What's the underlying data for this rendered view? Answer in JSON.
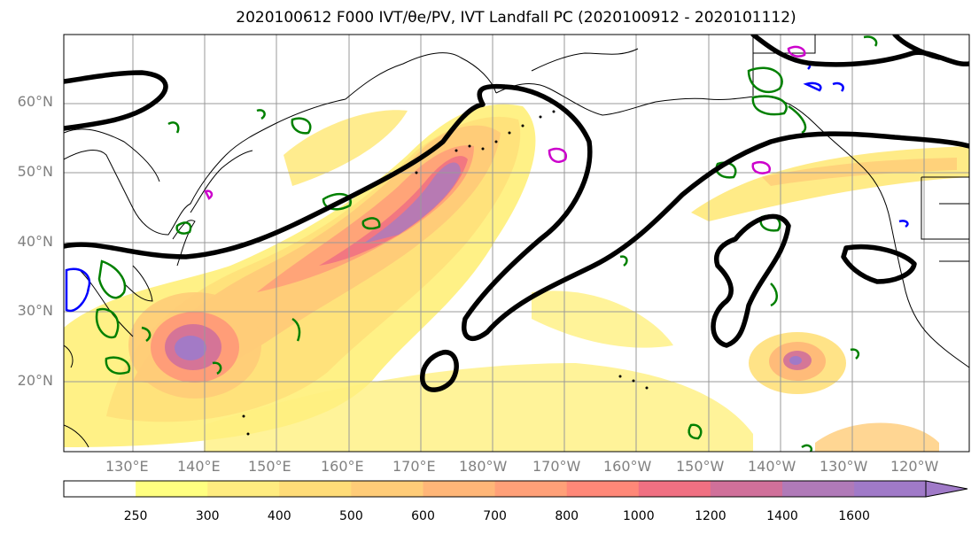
{
  "title": "2020100612 F000 IVT/θe/PV, IVT Landfall PC (2020100912 - 2020101112)",
  "lat_labels": [
    "60°N",
    "50°N",
    "40°N",
    "30°N",
    "20°N"
  ],
  "lon_labels": [
    "130°E",
    "140°E",
    "150°E",
    "160°E",
    "170°E",
    "180°W",
    "170°W",
    "160°W",
    "150°W",
    "140°W",
    "130°W",
    "120°W"
  ],
  "colorbar": {
    "levels": [
      "250",
      "300",
      "400",
      "500",
      "600",
      "700",
      "800",
      "1000",
      "1200",
      "1400",
      "1600"
    ],
    "colors": [
      "#ffff80",
      "#ffec80",
      "#ffdc78",
      "#ffcc78",
      "#ffb678",
      "#ffa078",
      "#ff8878",
      "#f07082",
      "#d0709a",
      "#b07ab8",
      "#a07ac8"
    ]
  },
  "colors": {
    "ivt_low": "#ffe97a",
    "ivt_mid": "#ffb078",
    "ivt_high": "#b07ab8",
    "landfall_pc": "#000000",
    "theta_e": "#008000",
    "pv_high": "#cc00cc",
    "pv_low": "#0000ff",
    "grid": "#999999",
    "coast": "#000000"
  }
}
